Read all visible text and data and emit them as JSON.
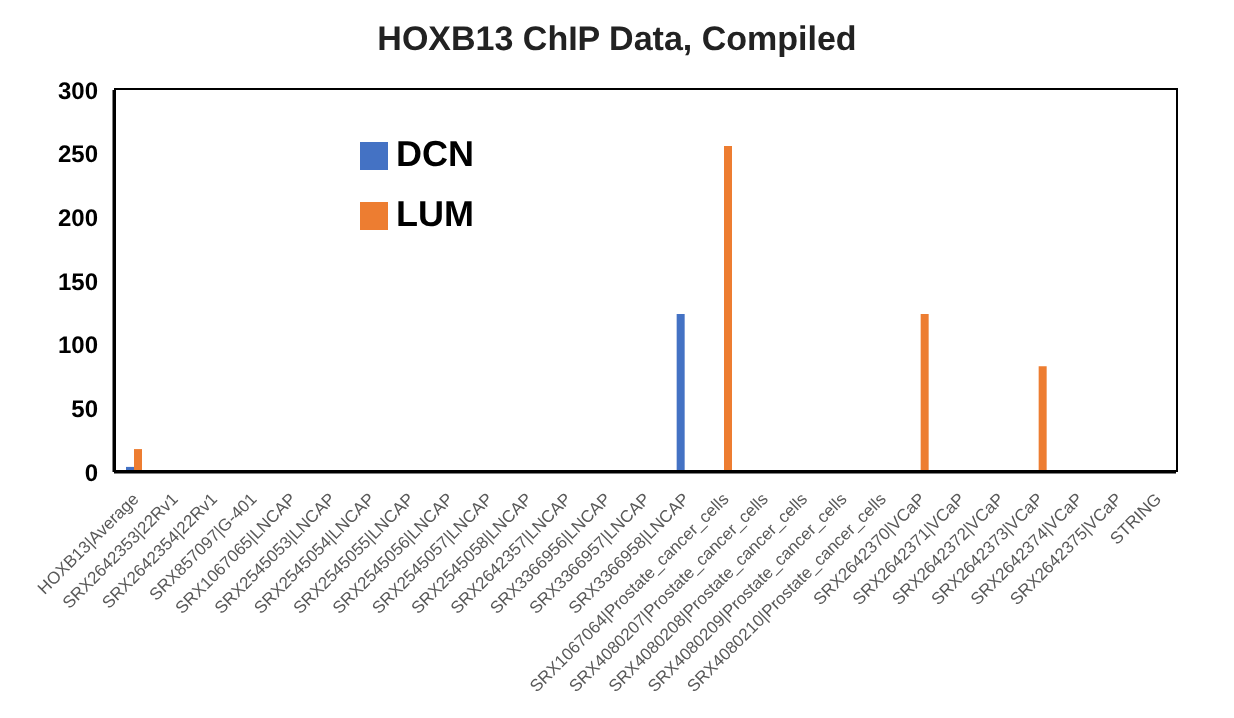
{
  "chart_data": {
    "type": "bar",
    "title": "HOXB13 ChIP Data, Compiled",
    "categories": [
      "HOXB13|Average",
      "SRX2642353|22Rv1",
      "SRX2642354|22Rv1",
      "SRX857097|G-401",
      "SRX1067065|LNCAP",
      "SRX2545053|LNCAP",
      "SRX2545054|LNCAP",
      "SRX2545055|LNCAP",
      "SRX2545056|LNCAP",
      "SRX2545057|LNCAP",
      "SRX2545058|LNCAP",
      "SRX2642357|LNCAP",
      "SRX3366956|LNCAP",
      "SRX3366957|LNCAP",
      "SRX3366958|LNCAP",
      "SRX1067064|Prostate_cancer_cells",
      "SRX4080207|Prostate_cancer_cells",
      "SRX4080208|Prostate_cancer_cells",
      "SRX4080209|Prostate_cancer_cells",
      "SRX4080210|Prostate_cancer_cells",
      "SRX2642370|VCaP",
      "SRX2642371|VCaP",
      "SRX2642372|VCaP",
      "SRX2642373|VCaP",
      "SRX2642374|VCaP",
      "SRX2642375|VCaP",
      "STRING"
    ],
    "series": [
      {
        "name": "DCN",
        "color": "#4472c4",
        "values": [
          4,
          0,
          0,
          0,
          0,
          0,
          0,
          0,
          0,
          0,
          0,
          0,
          0,
          0,
          124,
          0,
          0,
          0,
          0,
          0,
          0,
          0,
          0,
          0,
          0,
          0,
          0
        ]
      },
      {
        "name": "LUM",
        "color": "#ed7d31",
        "values": [
          18,
          0,
          0,
          0,
          0,
          0,
          0,
          0,
          0,
          0,
          0,
          0,
          0,
          0,
          0,
          256,
          0,
          0,
          0,
          0,
          124,
          0,
          0,
          83,
          0,
          0,
          0
        ]
      }
    ],
    "ylim": [
      0,
      300
    ],
    "yticks": [
      0,
      50,
      100,
      150,
      200,
      250,
      300
    ],
    "grid": false,
    "legend": "top left"
  }
}
